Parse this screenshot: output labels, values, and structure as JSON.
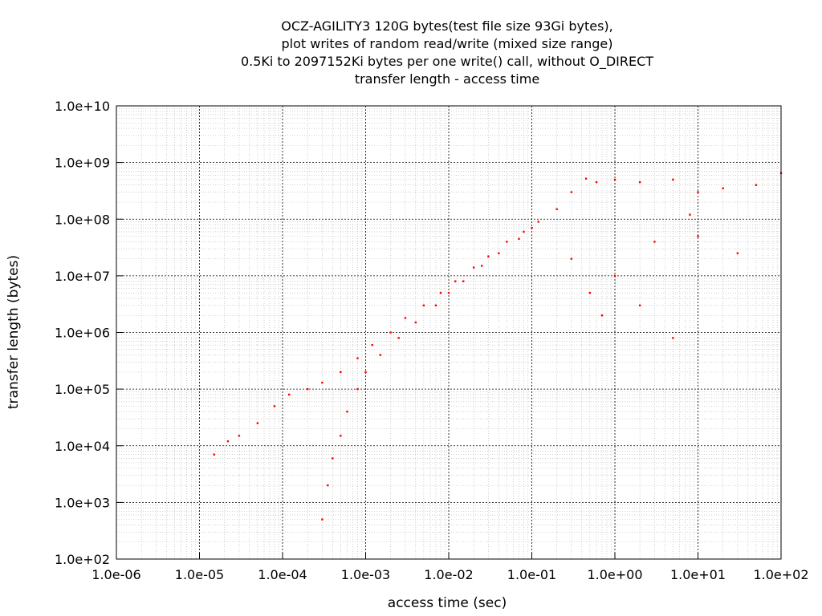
{
  "chart_data": {
    "type": "scatter",
    "title_lines": [
      "OCZ-AGILITY3 120G bytes(test file size 93Gi bytes),",
      "plot writes of random read/write (mixed size range)",
      "0.5Ki to 2097152Ki bytes per one write() call, without O_DIRECT",
      "transfer length - access time"
    ],
    "xlabel": "access time (sec)",
    "ylabel": "transfer length (bytes)",
    "xscale": "log",
    "yscale": "log",
    "xlim": [
      1e-06,
      100
    ],
    "ylim": [
      100,
      10000000000.0
    ],
    "x_tick_labels": [
      "1.0e-06",
      "1.0e-05",
      "1.0e-04",
      "1.0e-03",
      "1.0e-02",
      "1.0e-01",
      "1.0e+00",
      "1.0e+01",
      "1.0e+02"
    ],
    "y_tick_labels": [
      "1.0e+02",
      "1.0e+03",
      "1.0e+04",
      "1.0e+05",
      "1.0e+06",
      "1.0e+07",
      "1.0e+08",
      "1.0e+09",
      "1.0e+10"
    ],
    "grid": true,
    "point_color": "#ff0000",
    "clusters": [
      {
        "name": "upper-band",
        "points": [
          [
            1.5e-05,
            7000
          ],
          [
            2.2e-05,
            12000
          ],
          [
            3e-05,
            15000
          ],
          [
            5e-05,
            25000
          ],
          [
            8e-05,
            50000
          ],
          [
            0.00012,
            80000
          ],
          [
            0.0002,
            100000
          ],
          [
            0.0003,
            130000
          ],
          [
            0.0005,
            200000
          ],
          [
            0.0008,
            350000
          ],
          [
            0.0012,
            600000
          ],
          [
            0.002,
            1000000
          ],
          [
            0.003,
            1800000
          ],
          [
            0.005,
            3000000
          ],
          [
            0.008,
            5000000
          ],
          [
            0.012,
            8000000
          ],
          [
            0.02,
            14000000
          ],
          [
            0.03,
            22000000
          ],
          [
            0.05,
            40000000
          ],
          [
            0.08,
            60000000
          ],
          [
            0.12,
            90000000
          ],
          [
            0.2,
            150000000
          ],
          [
            0.3,
            300000000
          ],
          [
            0.45,
            520000000
          ]
        ]
      },
      {
        "name": "lower-band",
        "points": [
          [
            0.0003,
            500
          ],
          [
            0.00035,
            2000
          ],
          [
            0.0004,
            6000
          ],
          [
            0.0005,
            15000
          ],
          [
            0.0006,
            40000
          ],
          [
            0.0008,
            100000
          ],
          [
            0.001,
            200000
          ],
          [
            0.0015,
            400000
          ],
          [
            0.0025,
            800000
          ],
          [
            0.004,
            1500000
          ],
          [
            0.007,
            3000000
          ],
          [
            0.01,
            5000000
          ],
          [
            0.015,
            8000000
          ],
          [
            0.025,
            15000000
          ],
          [
            0.04,
            25000000
          ],
          [
            0.07,
            45000000
          ],
          [
            0.1,
            70000000
          ]
        ]
      },
      {
        "name": "slow-writes",
        "points": [
          [
            0.6,
            450000000
          ],
          [
            1,
            500000000
          ],
          [
            2,
            450000000
          ],
          [
            5,
            500000000
          ],
          [
            10,
            300000000
          ],
          [
            20,
            350000000
          ],
          [
            50,
            400000000
          ],
          [
            100,
            650000000
          ],
          [
            0.3,
            20000000
          ],
          [
            0.5,
            5000000
          ],
          [
            1,
            10000000
          ],
          [
            2,
            3000000
          ],
          [
            5,
            800000
          ],
          [
            10,
            50000000
          ],
          [
            30,
            25000000
          ],
          [
            0.7,
            2000000
          ],
          [
            3,
            40000000
          ],
          [
            8,
            120000000
          ]
        ]
      }
    ]
  }
}
